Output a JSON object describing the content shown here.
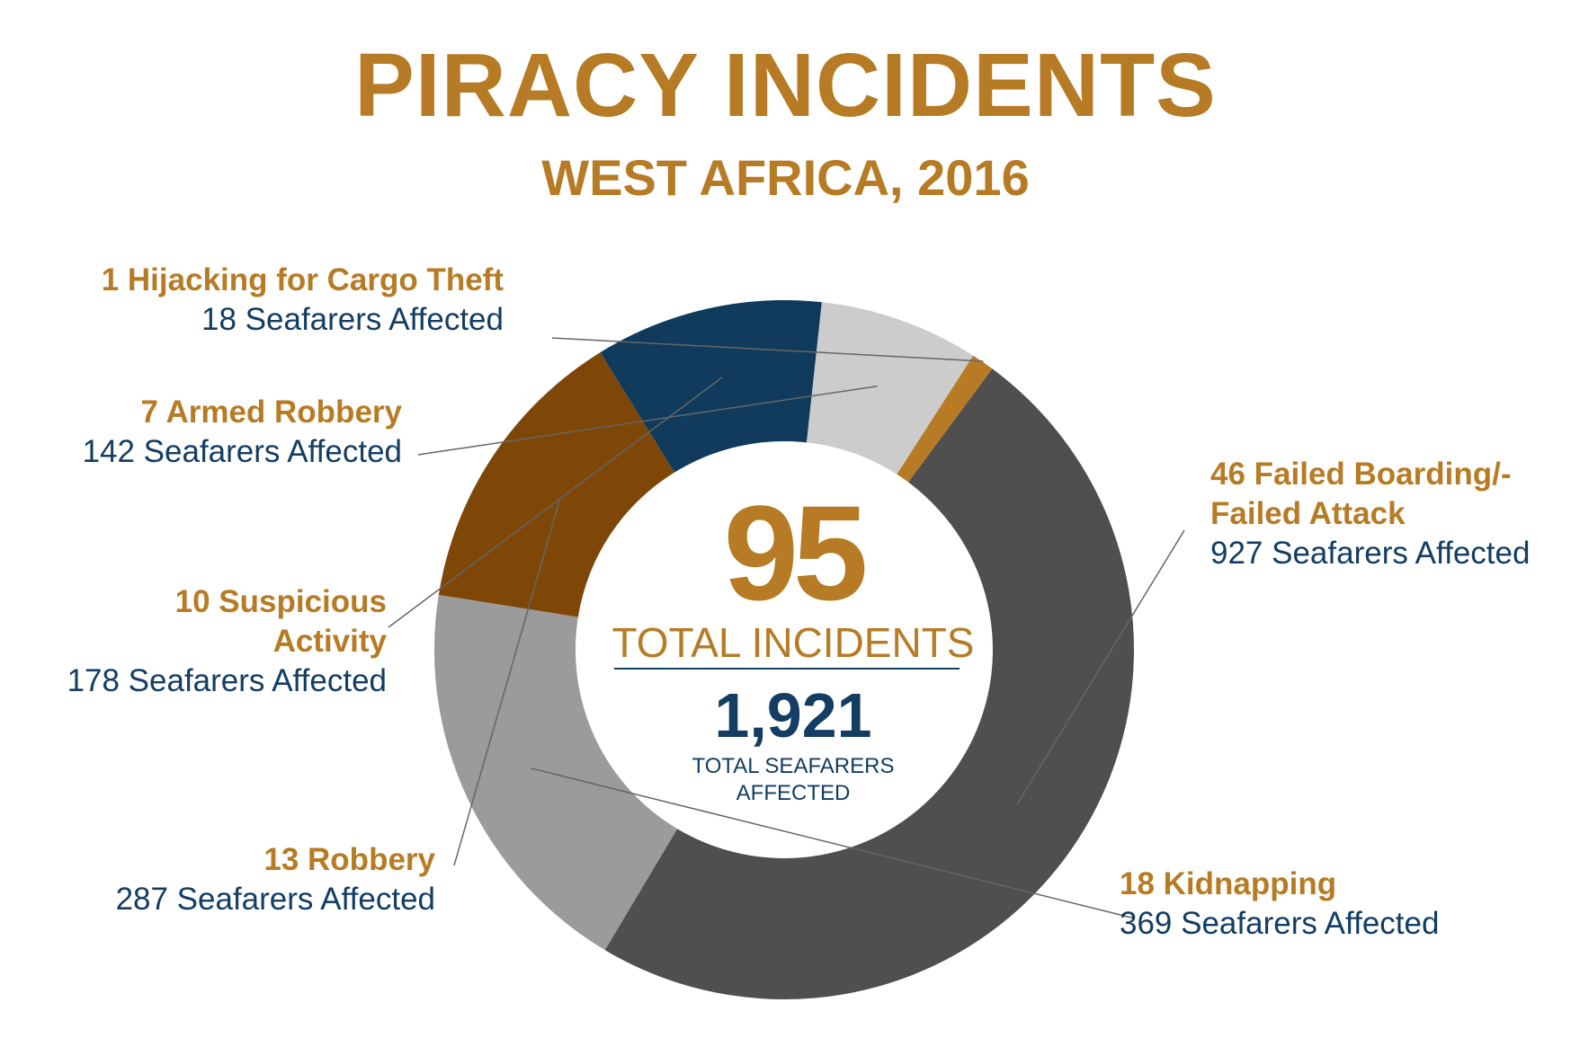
{
  "title": "PIRACY INCIDENTS",
  "subtitle": "WEST AFRICA, 2016",
  "center": {
    "total_incidents": "95",
    "total_incidents_label": "TOTAL INCIDENTS",
    "total_seafarers": "1,921",
    "total_seafarers_label_1": "TOTAL SEAFARERS",
    "total_seafarers_label_2": "AFFECTED"
  },
  "colors": {
    "accent": "#b67b24",
    "navy": "#133d63"
  },
  "chart_data": {
    "type": "pie",
    "variant": "donut",
    "title": "PIRACY INCIDENTS",
    "subtitle": "WEST AFRICA, 2016",
    "slices": [
      {
        "label": "Failed Boarding/Failed Attack",
        "value": 46,
        "seafarers": 927,
        "color": "#4f4f4f",
        "text_name": "46 Failed Boarding/-",
        "text_name2": "Failed Attack",
        "text_sub": "927 Seafarers Affected"
      },
      {
        "label": "Kidnapping",
        "value": 18,
        "seafarers": 369,
        "color": "#9b9b9b",
        "text_name": "18 Kidnapping",
        "text_sub": "369 Seafarers Affected"
      },
      {
        "label": "Robbery",
        "value": 13,
        "seafarers": 287,
        "color": "#7e4707",
        "text_name": "13 Robbery",
        "text_sub": "287 Seafarers Affected"
      },
      {
        "label": "Suspicious Activity",
        "value": 10,
        "seafarers": 178,
        "color": "#103b5c",
        "text_name": "10 Suspicious",
        "text_name2": "Activity",
        "text_sub": "178 Seafarers Affected"
      },
      {
        "label": "Armed Robbery",
        "value": 7,
        "seafarers": 142,
        "color": "#cccccc",
        "text_name": "7 Armed Robbery",
        "text_sub": "142 Seafarers Affected"
      },
      {
        "label": "Hijacking for Cargo Theft",
        "value": 1,
        "seafarers": 18,
        "color": "#b67b24",
        "text_name": "1 Hijacking for Cargo Theft",
        "text_sub": "18 Seafarers Affected"
      }
    ],
    "total": 95,
    "total_seafarers": 1921
  }
}
